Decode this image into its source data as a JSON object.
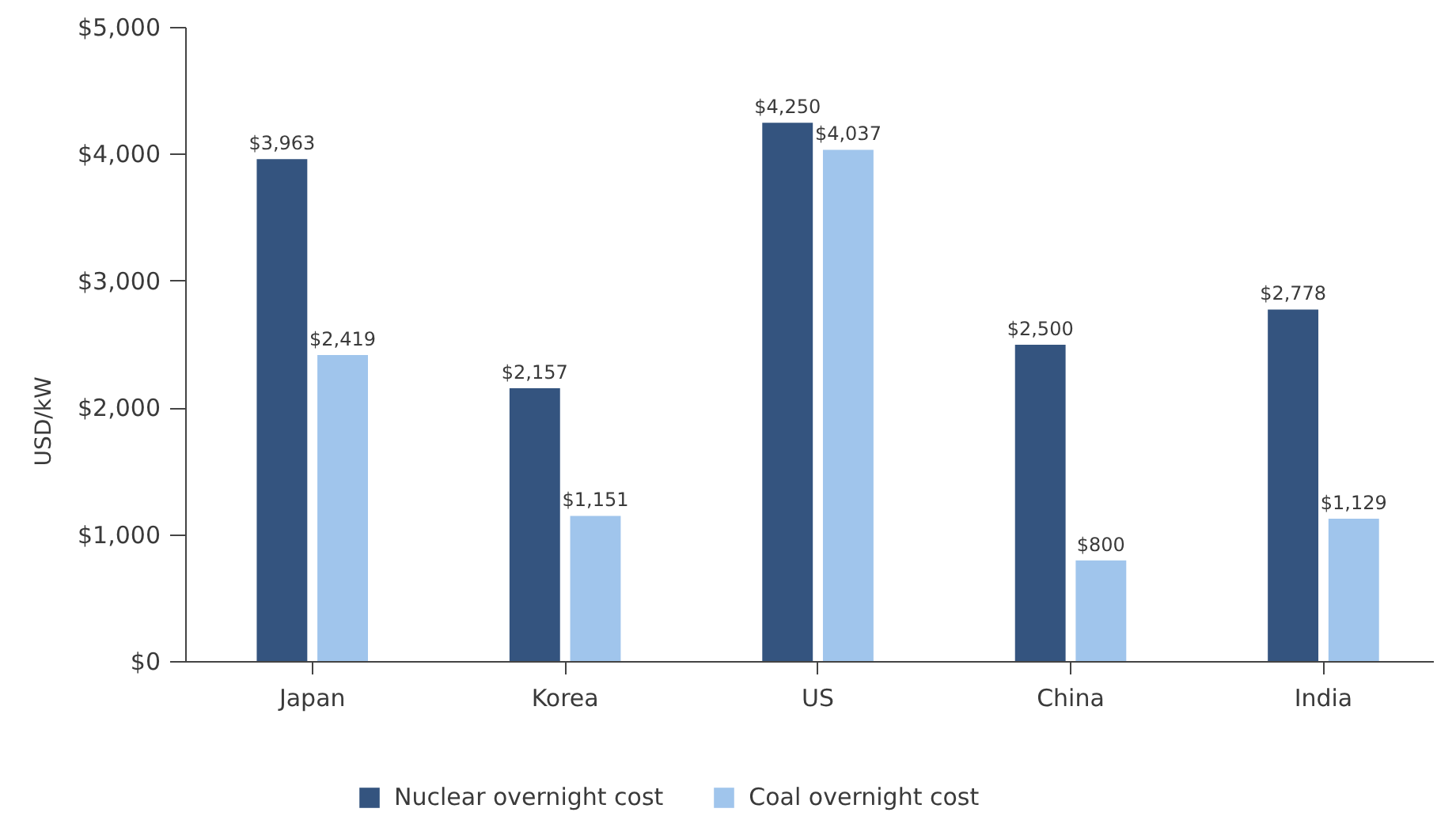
{
  "chart_data": {
    "type": "bar",
    "categories": [
      "Japan",
      "Korea",
      "US",
      "China",
      "India"
    ],
    "ylabel": "USD/kW",
    "ylim": [
      0,
      5000
    ],
    "yticks": [
      {
        "value": 0,
        "label": "$0"
      },
      {
        "value": 1000,
        "label": "$1,000"
      },
      {
        "value": 2000,
        "label": "$2,000"
      },
      {
        "value": 3000,
        "label": "$3,000"
      },
      {
        "value": 4000,
        "label": "$4,000"
      },
      {
        "value": 5000,
        "label": "$5,000"
      }
    ],
    "series": [
      {
        "name": "Nuclear overnight cost",
        "color": "#34547f",
        "values": [
          3963,
          2157,
          4250,
          2500,
          2778
        ],
        "value_labels": [
          "$3,963",
          "$2,157",
          "$4,250",
          "$2,500",
          "$2,778"
        ]
      },
      {
        "name": "Coal overnight cost",
        "color": "#a0c5ec",
        "values": [
          2419,
          1151,
          4037,
          800,
          1129
        ],
        "value_labels": [
          "$2,419",
          "$1,151",
          "$4,037",
          "$800",
          "$1,129"
        ]
      }
    ],
    "grid": false,
    "legend": "bottom"
  }
}
